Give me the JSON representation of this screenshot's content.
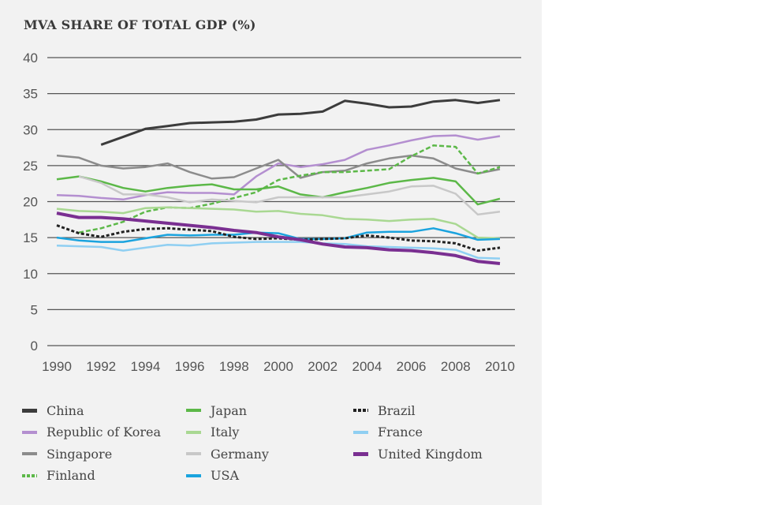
{
  "chart_data": {
    "type": "line",
    "title": "MVA SHARE OF TOTAL GDP (%)",
    "xlabel": "",
    "ylabel": "",
    "ylim": [
      0,
      40
    ],
    "xlim": [
      1990,
      2010
    ],
    "yticks": [
      0,
      5,
      10,
      15,
      20,
      25,
      30,
      35,
      40
    ],
    "xticks": [
      1990,
      1992,
      1994,
      1996,
      1998,
      2000,
      2002,
      2004,
      2006,
      2008,
      2010
    ],
    "grid": "horizontal",
    "legend_position": "bottom",
    "x": [
      1990,
      1991,
      1992,
      1993,
      1994,
      1995,
      1996,
      1997,
      1998,
      1999,
      2000,
      2001,
      2002,
      2003,
      2004,
      2005,
      2006,
      2007,
      2008,
      2009,
      2010
    ],
    "series": [
      {
        "name": "China",
        "color": "#3c3c3c",
        "style": "solid",
        "width": 3,
        "values": [
          null,
          null,
          27.9,
          29.0,
          30.1,
          30.5,
          30.9,
          31.0,
          31.1,
          31.4,
          32.1,
          32.2,
          32.5,
          34.0,
          33.6,
          33.1,
          33.2,
          33.9,
          34.1,
          33.7,
          34.1
        ]
      },
      {
        "name": "Republic of Korea",
        "color": "#b48fd0",
        "style": "solid",
        "width": 2.5,
        "values": [
          20.9,
          20.8,
          20.5,
          20.3,
          20.9,
          21.3,
          21.2,
          21.2,
          21.0,
          23.5,
          25.3,
          24.8,
          25.2,
          25.8,
          27.2,
          27.8,
          28.5,
          29.1,
          29.2,
          28.6,
          29.1
        ]
      },
      {
        "name": "Singapore",
        "color": "#8c8c8c",
        "style": "solid",
        "width": 2.5,
        "values": [
          26.4,
          26.1,
          25.0,
          24.6,
          24.8,
          25.3,
          24.1,
          23.2,
          23.4,
          24.6,
          25.8,
          23.3,
          24.1,
          24.3,
          25.3,
          26.0,
          26.4,
          26.0,
          24.6,
          23.9,
          24.5
        ]
      },
      {
        "name": "Finland",
        "color": "#5cb848",
        "style": "dashed",
        "width": 2.5,
        "values": [
          null,
          15.7,
          16.3,
          17.2,
          18.6,
          19.2,
          19.1,
          19.7,
          20.5,
          21.3,
          23.0,
          23.6,
          24.1,
          24.1,
          24.3,
          24.5,
          26.3,
          27.8,
          27.6,
          23.9,
          24.8
        ]
      },
      {
        "name": "Japan",
        "color": "#5cb848",
        "style": "solid",
        "width": 2.5,
        "values": [
          23.1,
          23.5,
          22.8,
          21.9,
          21.4,
          21.9,
          22.2,
          22.4,
          21.7,
          21.7,
          22.1,
          21.0,
          20.6,
          21.3,
          21.9,
          22.6,
          23.0,
          23.3,
          22.8,
          19.6,
          20.4
        ]
      },
      {
        "name": "Italy",
        "color": "#a9d892",
        "style": "solid",
        "width": 2.5,
        "values": [
          19.0,
          18.7,
          18.6,
          18.4,
          19.1,
          19.2,
          19.1,
          19.0,
          18.9,
          18.6,
          18.7,
          18.3,
          18.1,
          17.6,
          17.5,
          17.3,
          17.5,
          17.6,
          16.9,
          15.0,
          14.9
        ]
      },
      {
        "name": "Germany",
        "color": "#c8c8c8",
        "style": "solid",
        "width": 2.5,
        "values": [
          null,
          23.5,
          22.6,
          21.0,
          21.0,
          20.6,
          19.9,
          20.3,
          20.1,
          19.9,
          20.6,
          20.6,
          20.6,
          20.6,
          21.0,
          21.4,
          22.1,
          22.2,
          21.1,
          18.2,
          18.6
        ]
      },
      {
        "name": "USA",
        "color": "#1aa3de",
        "style": "solid",
        "width": 2.5,
        "values": [
          15.0,
          14.6,
          14.4,
          14.4,
          14.9,
          15.4,
          15.3,
          15.4,
          15.4,
          15.7,
          15.6,
          14.8,
          14.8,
          14.9,
          15.7,
          15.8,
          15.8,
          16.3,
          15.6,
          14.7,
          14.8
        ]
      },
      {
        "name": "Brazil",
        "color": "#222222",
        "style": "dotted",
        "width": 3,
        "values": [
          16.7,
          15.6,
          15.1,
          15.8,
          16.2,
          16.3,
          16.1,
          15.9,
          15.1,
          14.8,
          14.9,
          14.7,
          14.8,
          14.9,
          15.3,
          15.0,
          14.6,
          14.5,
          14.2,
          13.2,
          13.6
        ]
      },
      {
        "name": "France",
        "color": "#8fcff2",
        "style": "solid",
        "width": 2.5,
        "values": [
          13.9,
          13.8,
          13.7,
          13.2,
          13.6,
          14.0,
          13.9,
          14.2,
          14.3,
          14.4,
          14.4,
          14.4,
          14.2,
          14.1,
          13.8,
          13.7,
          13.6,
          13.5,
          13.3,
          12.2,
          12.1
        ]
      },
      {
        "name": "United Kingdom",
        "color": "#7a2f91",
        "style": "solid",
        "width": 4,
        "values": [
          18.4,
          17.8,
          17.8,
          17.6,
          17.3,
          17.0,
          16.7,
          16.4,
          16.0,
          15.7,
          15.1,
          14.7,
          14.1,
          13.7,
          13.6,
          13.3,
          13.2,
          12.9,
          12.5,
          11.7,
          11.4
        ]
      }
    ]
  }
}
